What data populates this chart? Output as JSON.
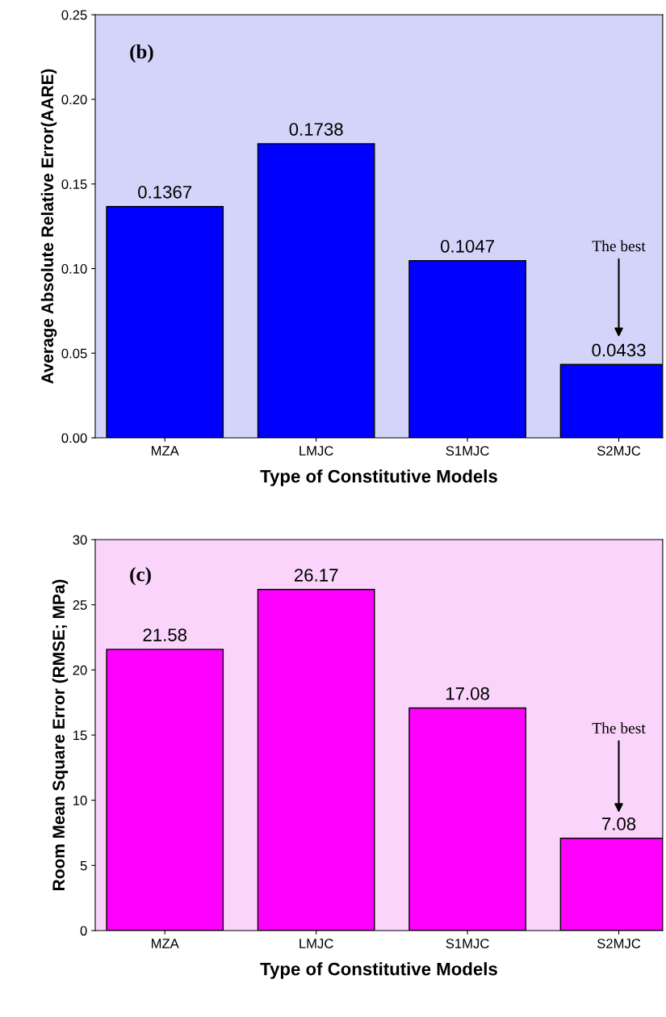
{
  "chart_data": [
    {
      "type": "bar",
      "xlabel": "Type of Constitutive Models",
      "ylabel": "Average Absolute Relative Error(AARE)",
      "categories": [
        "MZA",
        "LMJC",
        "S1MJC",
        "S2MJC"
      ],
      "values": [
        0.1367,
        0.1738,
        0.1047,
        0.0433
      ],
      "color": "#0000ff",
      "data_labels": true,
      "ylim": [
        0,
        0.25
      ],
      "yticks": [
        {
          "value": 0,
          "label": "0.00"
        },
        {
          "value": 0.05,
          "label": "0.05"
        },
        {
          "value": 0.1,
          "label": "0.10"
        },
        {
          "value": 0.15,
          "label": "0.15"
        },
        {
          "value": 0.2,
          "label": "0.20"
        },
        {
          "value": 0.25,
          "label": "0.25"
        }
      ],
      "grid": false,
      "legend": false,
      "annotations": [
        "(b)",
        "The best"
      ]
    },
    {
      "type": "bar",
      "xlabel": "Type of Constitutive Models",
      "ylabel": "Room Mean Square Error (RMSE; MPa)",
      "categories": [
        "MZA",
        "LMJC",
        "S1MJC",
        "S2MJC"
      ],
      "values": [
        21.58,
        26.17,
        17.08,
        7.08
      ],
      "color": "#ff00ff",
      "data_labels": true,
      "ylim": [
        0,
        30
      ],
      "yticks": [
        0,
        5,
        10,
        15,
        20,
        25,
        30
      ],
      "grid": false,
      "legend": false,
      "annotations": [
        "(c)",
        "The best"
      ]
    }
  ]
}
